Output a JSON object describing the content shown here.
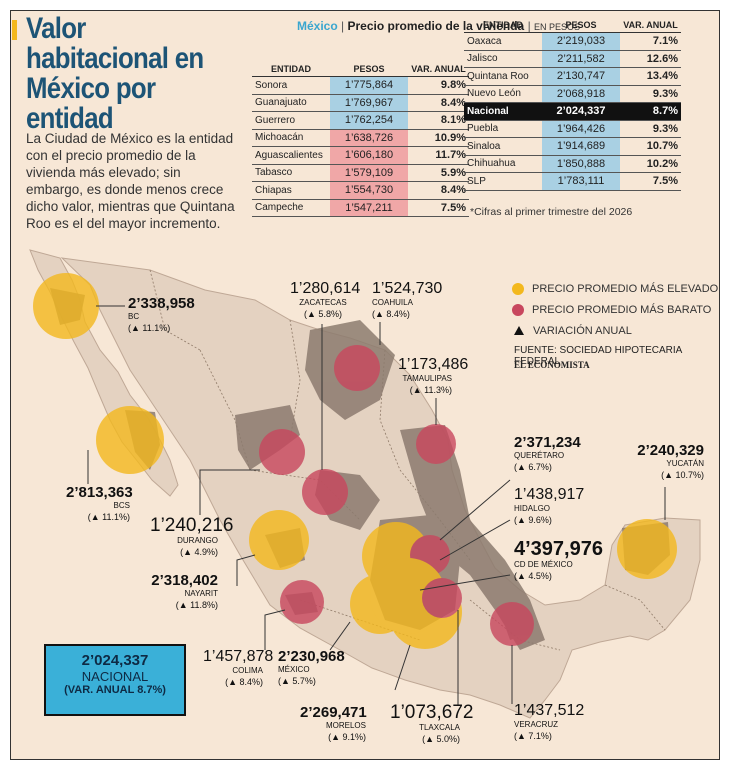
{
  "header": {
    "title": "Valor habitacional en México por entidad",
    "intro": "La Ciudad de México es la entidad con el precio promedio de la vivienda más elevado; sin embargo, es donde menos crece dicho valor, mientras que Quintana Roo es el del mayor incremento."
  },
  "table_header": {
    "country": "México",
    "subtitle": "Precio promedio de la vivienda",
    "units": "EN PESOS",
    "col_entity": "ENTIDAD",
    "col_pesos": "PESOS",
    "col_var": "VAR. ANUAL"
  },
  "table_left": [
    {
      "entidad": "Sonora",
      "pesos": "1’775,864",
      "var": "9.8%",
      "hl": "blue"
    },
    {
      "entidad": "Guanajuato",
      "pesos": "1’769,967",
      "var": "8.4%",
      "hl": "blue"
    },
    {
      "entidad": "Guerrero",
      "pesos": "1’762,254",
      "var": "8.1%",
      "hl": "blue"
    },
    {
      "entidad": "Michoacán",
      "pesos": "1’638,726",
      "var": "10.9%",
      "hl": "pink"
    },
    {
      "entidad": "Aguascalientes",
      "pesos": "1’606,180",
      "var": "11.7%",
      "hl": "pink"
    },
    {
      "entidad": "Tabasco",
      "pesos": "1’579,109",
      "var": "5.9%",
      "hl": "pink"
    },
    {
      "entidad": "Chiapas",
      "pesos": "1’554,730",
      "var": "8.4%",
      "hl": "pink"
    },
    {
      "entidad": "Campeche",
      "pesos": "1’547,211",
      "var": "7.5%",
      "hl": "pink"
    }
  ],
  "table_right": [
    {
      "entidad": "Oaxaca",
      "pesos": "2’219,033",
      "var": "7.1%",
      "hl": "blue"
    },
    {
      "entidad": "Jalisco",
      "pesos": "2’211,582",
      "var": "12.6%",
      "hl": "blue"
    },
    {
      "entidad": "Quintana Roo",
      "pesos": "2’130,747",
      "var": "13.4%",
      "hl": "blue"
    },
    {
      "entidad": "Nuevo León",
      "pesos": "2’068,918",
      "var": "9.3%",
      "hl": "blue"
    },
    {
      "entidad": "Nacional",
      "pesos": "2’024,337",
      "var": "8.7%",
      "hl": "national"
    },
    {
      "entidad": "Puebla",
      "pesos": "1’964,426",
      "var": "9.3%",
      "hl": "blue"
    },
    {
      "entidad": "Sinaloa",
      "pesos": "1’914,689",
      "var": "10.7%",
      "hl": "blue"
    },
    {
      "entidad": "Chihuahua",
      "pesos": "1’850,888",
      "var": "10.2%",
      "hl": "blue"
    },
    {
      "entidad": "SLP",
      "pesos": "1’783,111",
      "var": "7.5%",
      "hl": "blue"
    }
  ],
  "note": "*Cifras al primer trimestre del 2026",
  "legend": {
    "high": "PRECIO PROMEDIO MÁS ELEVADO",
    "low": "PRECIO PROMEDIO MÁS BARATO",
    "var": "VARIACIÓN ANUAL",
    "high_color": "#f3b81d",
    "low_color": "#c8475e"
  },
  "source": "FUENTE: SOCIEDAD HIPOTECARIA FEDERAL",
  "brand": "EL ECONOMISTA",
  "national_box": {
    "value": "2’024,337",
    "label": "NACIONAL",
    "var": "(VAR. ANUAL 8.7%)"
  },
  "map_labels": {
    "bc": {
      "value": "2’338,958",
      "state": "BC",
      "var": "(▲ 11.1%)"
    },
    "bcs": {
      "value": "2’813,363",
      "state": "BCS",
      "var": "(▲ 11.1%)"
    },
    "zacatecas": {
      "value": "1’280,614",
      "state": "ZACATECAS",
      "var": "(▲ 5.8%)"
    },
    "coahuila": {
      "value": "1’524,730",
      "state": "COAHUILA",
      "var": "(▲ 8.4%)"
    },
    "tamaulipas": {
      "value": "1’173,486",
      "state": "TAMAULIPAS",
      "var": "(▲ 11.3%)"
    },
    "queretaro": {
      "value": "2’371,234",
      "state": "QUERÉTARO",
      "var": "(▲ 6.7%)"
    },
    "yucatan": {
      "value": "2’240,329",
      "state": "YUCATÁN",
      "var": "(▲ 10.7%)"
    },
    "hidalgo": {
      "value": "1’438,917",
      "state": "HIDALGO",
      "var": "(▲ 9.6%)"
    },
    "cdmx": {
      "value": "4’397,976",
      "state": "CD DE MÉXICO",
      "var": "(▲ 4.5%)"
    },
    "durango": {
      "value": "1’240,216",
      "state": "DURANGO",
      "var": "(▲ 4.9%)"
    },
    "nayarit": {
      "value": "2’318,402",
      "state": "NAYARIT",
      "var": "(▲ 11.8%)"
    },
    "colima": {
      "value": "1’457,878",
      "state": "COLIMA",
      "var": "(▲ 8.4%)"
    },
    "mexico": {
      "value": "2’230,968",
      "state": "MÉXICO",
      "var": "(▲ 5.7%)"
    },
    "morelos": {
      "value": "2’269,471",
      "state": "MORELOS",
      "var": "(▲ 9.1%)"
    },
    "tlaxcala": {
      "value": "1’073,672",
      "state": "TLAXCALA",
      "var": "(▲ 5.0%)"
    },
    "veracruz": {
      "value": "1’437,512",
      "state": "VERACRUZ",
      "var": "(▲ 7.1%)"
    }
  }
}
